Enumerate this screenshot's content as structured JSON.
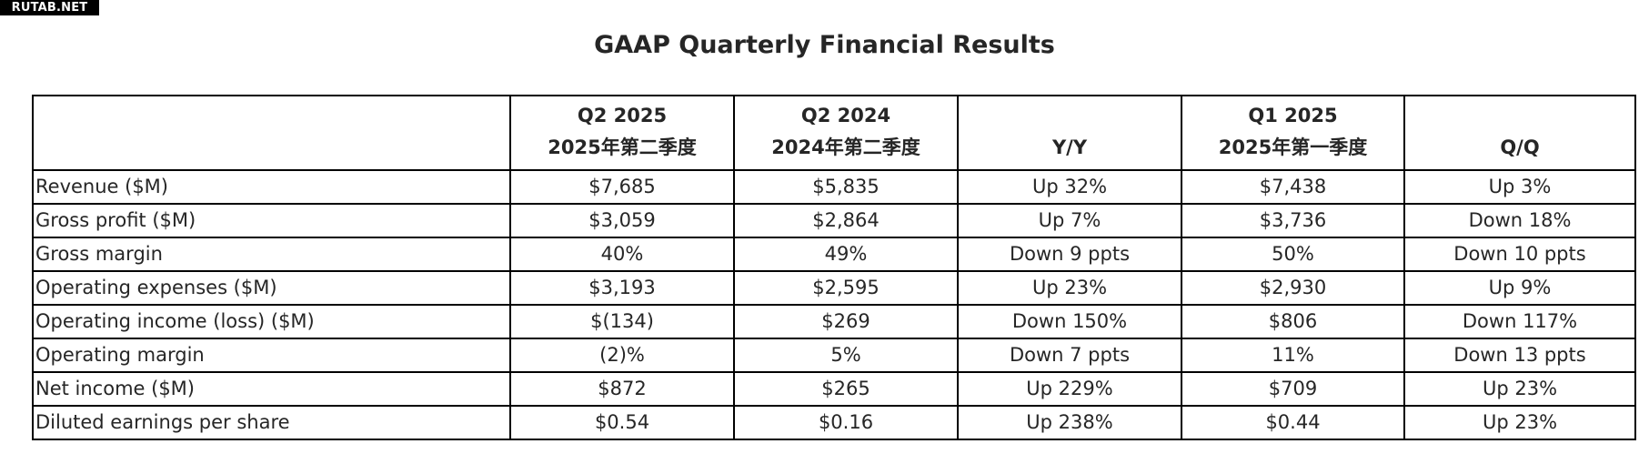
{
  "watermark": "RUTAB.NET",
  "title": "GAAP Quarterly Financial Results",
  "table": {
    "headers": [
      {
        "line1": "",
        "line2": ""
      },
      {
        "line1": "Q2 2025",
        "line2": "2025年第二季度"
      },
      {
        "line1": "Q2 2024",
        "line2": "2024年第二季度"
      },
      {
        "line1": "",
        "line2": "Y/Y"
      },
      {
        "line1": "Q1 2025",
        "line2": "2025年第一季度"
      },
      {
        "line1": "",
        "line2": "Q/Q"
      }
    ],
    "rows": [
      [
        "Revenue ($M)",
        "$7,685",
        "$5,835",
        "Up 32%",
        "$7,438",
        "Up 3%"
      ],
      [
        "Gross profit ($M)",
        "$3,059",
        "$2,864",
        "Up 7%",
        "$3,736",
        "Down 18%"
      ],
      [
        "Gross margin",
        "40%",
        "49%",
        "Down 9 ppts",
        "50%",
        "Down 10 ppts"
      ],
      [
        "Operating expenses ($M)",
        "$3,193",
        "$2,595",
        "Up 23%",
        "$2,930",
        "Up 9%"
      ],
      [
        "Operating income (loss) ($M)",
        "$(134)",
        "$269",
        "Down 150%",
        "$806",
        "Down 117%"
      ],
      [
        "Operating margin",
        "(2)%",
        "5%",
        "Down 7 ppts",
        "11%",
        "Down 13 ppts"
      ],
      [
        "Net income ($M)",
        "$872",
        "$265",
        "Up 229%",
        "$709",
        "Up 23%"
      ],
      [
        "Diluted earnings per share",
        "$0.54",
        "$0.16",
        "Up 238%",
        "$0.44",
        "Up 23%"
      ]
    ]
  }
}
